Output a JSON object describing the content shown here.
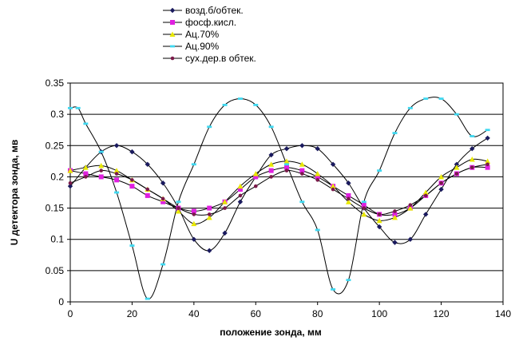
{
  "chart_data": {
    "type": "scatter",
    "xlabel": "положение зонда, мм",
    "ylabel": "U детектора зонда, мв",
    "xlim": [
      0,
      140
    ],
    "ylim": [
      0,
      0.35
    ],
    "xticks": [
      "0",
      "20",
      "40",
      "60",
      "80",
      "100",
      "120",
      "140"
    ],
    "yticks": [
      "0",
      "0.05",
      "0.1",
      "0.15",
      "0.2",
      "0.25",
      "0.3",
      "0.35"
    ],
    "grid": "horizontal",
    "legend_position": "top",
    "series": [
      {
        "name": "возд.б/обтек.",
        "color": "#1a1a5e",
        "marker": "diamond",
        "x": [
          0,
          5,
          10,
          15,
          20,
          25,
          30,
          35,
          40,
          45,
          50,
          55,
          60,
          65,
          70,
          75,
          80,
          85,
          90,
          95,
          100,
          105,
          110,
          115,
          120,
          125,
          130,
          135
        ],
        "y": [
          0.185,
          0.215,
          0.24,
          0.25,
          0.24,
          0.22,
          0.19,
          0.15,
          0.1,
          0.082,
          0.11,
          0.16,
          0.2,
          0.235,
          0.245,
          0.25,
          0.245,
          0.22,
          0.19,
          0.15,
          0.12,
          0.095,
          0.1,
          0.14,
          0.18,
          0.22,
          0.245,
          0.262
        ]
      },
      {
        "name": "фосф.кисл.",
        "color": "#e020e0",
        "marker": "square",
        "x": [
          0,
          5,
          10,
          15,
          20,
          25,
          30,
          35,
          40,
          45,
          50,
          55,
          60,
          65,
          70,
          75,
          80,
          85,
          90,
          95,
          100,
          105,
          110,
          115,
          120,
          125,
          130,
          135
        ],
        "y": [
          0.21,
          0.205,
          0.2,
          0.195,
          0.185,
          0.17,
          0.16,
          0.15,
          0.145,
          0.15,
          0.16,
          0.18,
          0.2,
          0.21,
          0.215,
          0.21,
          0.2,
          0.185,
          0.17,
          0.155,
          0.14,
          0.14,
          0.15,
          0.17,
          0.19,
          0.205,
          0.215,
          0.215
        ]
      },
      {
        "name": "Ац.70%",
        "color": "#e8e800",
        "marker": "triangle",
        "x": [
          0,
          5,
          10,
          15,
          20,
          25,
          30,
          35,
          40,
          45,
          50,
          55,
          60,
          65,
          70,
          75,
          80,
          85,
          90,
          95,
          100,
          105,
          110,
          115,
          120,
          125,
          130,
          135
        ],
        "y": [
          0.21,
          0.215,
          0.218,
          0.21,
          0.195,
          0.18,
          0.165,
          0.145,
          0.125,
          0.135,
          0.16,
          0.185,
          0.205,
          0.22,
          0.225,
          0.22,
          0.205,
          0.185,
          0.16,
          0.14,
          0.13,
          0.135,
          0.15,
          0.175,
          0.2,
          0.215,
          0.228,
          0.225
        ]
      },
      {
        "name": "Ац.90%",
        "color": "#40d8f0",
        "marker": "cross",
        "x": [
          0,
          2.5,
          5,
          10,
          15,
          20,
          25,
          30,
          35,
          40,
          45,
          50,
          55,
          60,
          65,
          70,
          75,
          80,
          85,
          90,
          95,
          100,
          105,
          110,
          115,
          120,
          125,
          130,
          135
        ],
        "y": [
          0.31,
          0.31,
          0.285,
          0.24,
          0.175,
          0.09,
          0.005,
          0.06,
          0.16,
          0.22,
          0.28,
          0.315,
          0.325,
          0.315,
          0.28,
          0.22,
          0.16,
          0.115,
          0.02,
          0.035,
          0.16,
          0.21,
          0.27,
          0.31,
          0.325,
          0.325,
          0.3,
          0.265,
          0.275
        ]
      },
      {
        "name": "сух.дер.в обтек.",
        "color": "#7a1a4a",
        "marker": "circle",
        "x": [
          0,
          5,
          10,
          15,
          20,
          25,
          30,
          35,
          40,
          45,
          50,
          55,
          60,
          65,
          70,
          75,
          80,
          85,
          90,
          95,
          100,
          105,
          110,
          115,
          120,
          125,
          130,
          135
        ],
        "y": [
          0.19,
          0.2,
          0.21,
          0.205,
          0.195,
          0.18,
          0.165,
          0.15,
          0.14,
          0.14,
          0.15,
          0.17,
          0.185,
          0.2,
          0.21,
          0.205,
          0.195,
          0.18,
          0.165,
          0.15,
          0.14,
          0.145,
          0.155,
          0.17,
          0.19,
          0.205,
          0.215,
          0.22
        ]
      }
    ]
  }
}
